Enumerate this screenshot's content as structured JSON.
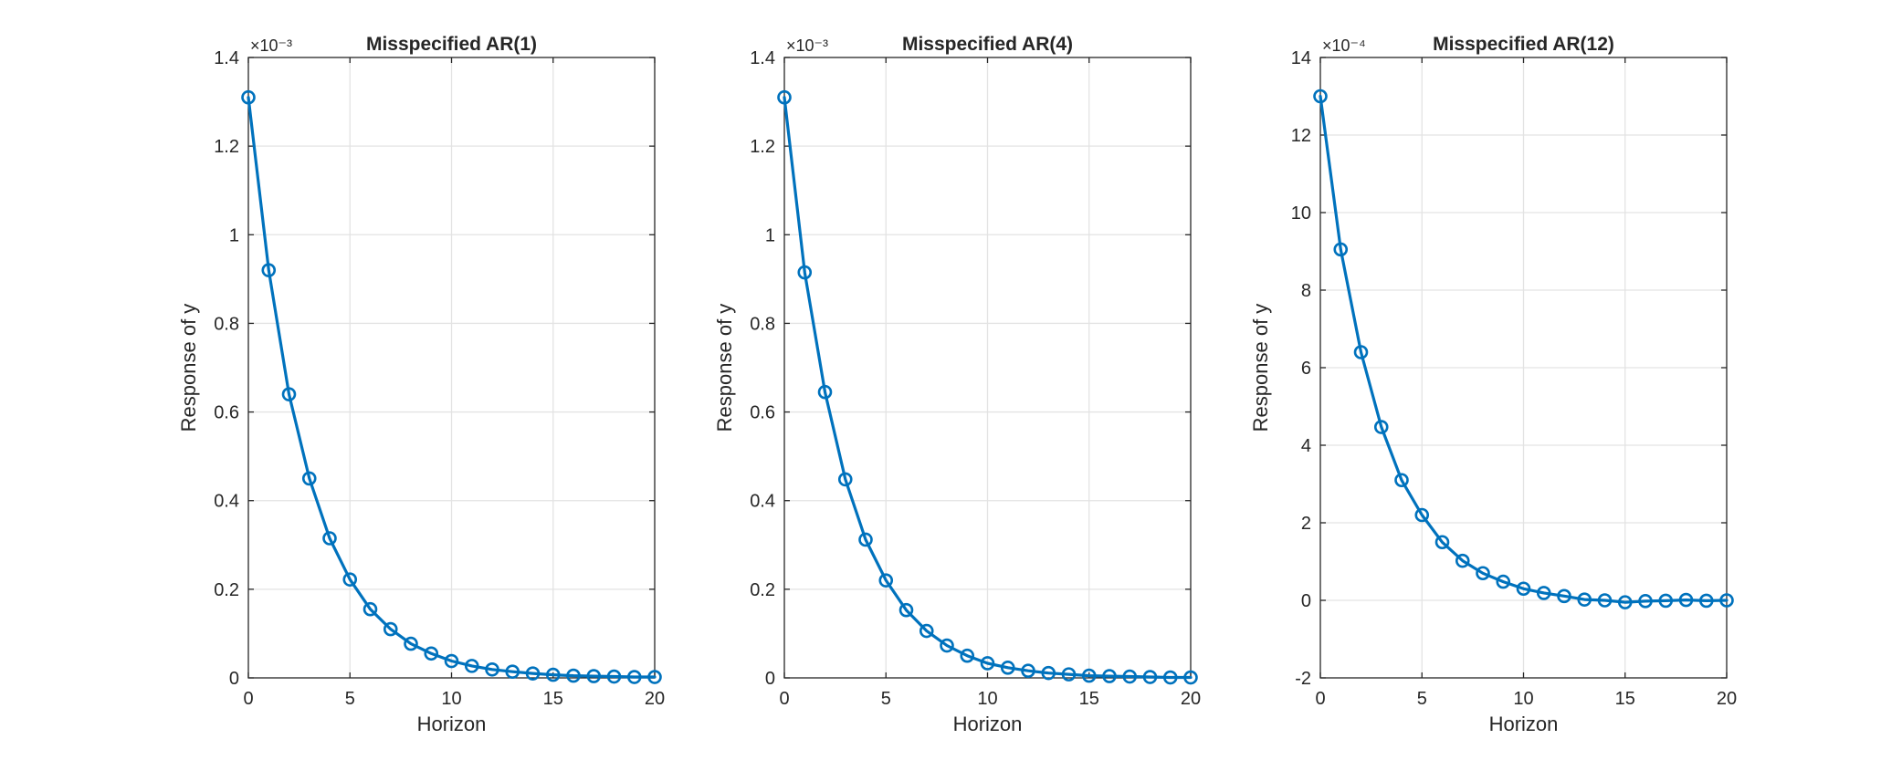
{
  "figure": {
    "series_color": "#0072BD"
  },
  "chart_data": [
    {
      "type": "line",
      "title": "Misspecified AR(1)",
      "xlabel": "Horizon",
      "ylabel": "Response of y",
      "exponent_label": "×10⁻³",
      "scale": 0.001,
      "xlim": [
        0,
        20
      ],
      "ylim": [
        0,
        1.4
      ],
      "xticks": [
        0,
        5,
        10,
        15,
        20
      ],
      "yticks": [
        0,
        0.2,
        0.4,
        0.6,
        0.8,
        1,
        1.2,
        1.4
      ],
      "ytick_labels": [
        "0",
        "0.2",
        "0.4",
        "0.6",
        "0.8",
        "1",
        "1.2",
        "1.4"
      ],
      "grid": true,
      "x": [
        0,
        1,
        2,
        3,
        4,
        5,
        6,
        7,
        8,
        9,
        10,
        11,
        12,
        13,
        14,
        15,
        16,
        17,
        18,
        19,
        20
      ],
      "values": [
        1.31,
        0.92,
        0.64,
        0.45,
        0.315,
        0.222,
        0.155,
        0.11,
        0.077,
        0.055,
        0.038,
        0.027,
        0.019,
        0.014,
        0.01,
        0.007,
        0.005,
        0.004,
        0.003,
        0.002,
        0.002
      ]
    },
    {
      "type": "line",
      "title": "Misspecified AR(4)",
      "xlabel": "Horizon",
      "ylabel": "Response of y",
      "exponent_label": "×10⁻³",
      "scale": 0.001,
      "xlim": [
        0,
        20
      ],
      "ylim": [
        0,
        1.4
      ],
      "xticks": [
        0,
        5,
        10,
        15,
        20
      ],
      "yticks": [
        0,
        0.2,
        0.4,
        0.6,
        0.8,
        1,
        1.2,
        1.4
      ],
      "ytick_labels": [
        "0",
        "0.2",
        "0.4",
        "0.6",
        "0.8",
        "1",
        "1.2",
        "1.4"
      ],
      "grid": true,
      "x": [
        0,
        1,
        2,
        3,
        4,
        5,
        6,
        7,
        8,
        9,
        10,
        11,
        12,
        13,
        14,
        15,
        16,
        17,
        18,
        19,
        20
      ],
      "values": [
        1.31,
        0.915,
        0.645,
        0.448,
        0.312,
        0.22,
        0.153,
        0.106,
        0.073,
        0.05,
        0.033,
        0.023,
        0.016,
        0.011,
        0.008,
        0.005,
        0.004,
        0.003,
        0.002,
        0.001,
        0.001
      ]
    },
    {
      "type": "line",
      "title": "Misspecified AR(12)",
      "xlabel": "Horizon",
      "ylabel": "Response of y",
      "exponent_label": "×10⁻⁴",
      "scale": 0.0001,
      "xlim": [
        0,
        20
      ],
      "ylim": [
        -2,
        14
      ],
      "xticks": [
        0,
        5,
        10,
        15,
        20
      ],
      "yticks": [
        -2,
        0,
        2,
        4,
        6,
        8,
        10,
        12,
        14
      ],
      "ytick_labels": [
        "-2",
        "0",
        "2",
        "4",
        "6",
        "8",
        "10",
        "12",
        "14"
      ],
      "grid": true,
      "x": [
        0,
        1,
        2,
        3,
        4,
        5,
        6,
        7,
        8,
        9,
        10,
        11,
        12,
        13,
        14,
        15,
        16,
        17,
        18,
        19,
        20
      ],
      "values": [
        13.0,
        9.05,
        6.4,
        4.47,
        3.1,
        2.2,
        1.5,
        1.02,
        0.7,
        0.48,
        0.3,
        0.19,
        0.11,
        0.02,
        0.0,
        -0.05,
        -0.02,
        -0.01,
        0.01,
        -0.01,
        0.0
      ]
    }
  ]
}
